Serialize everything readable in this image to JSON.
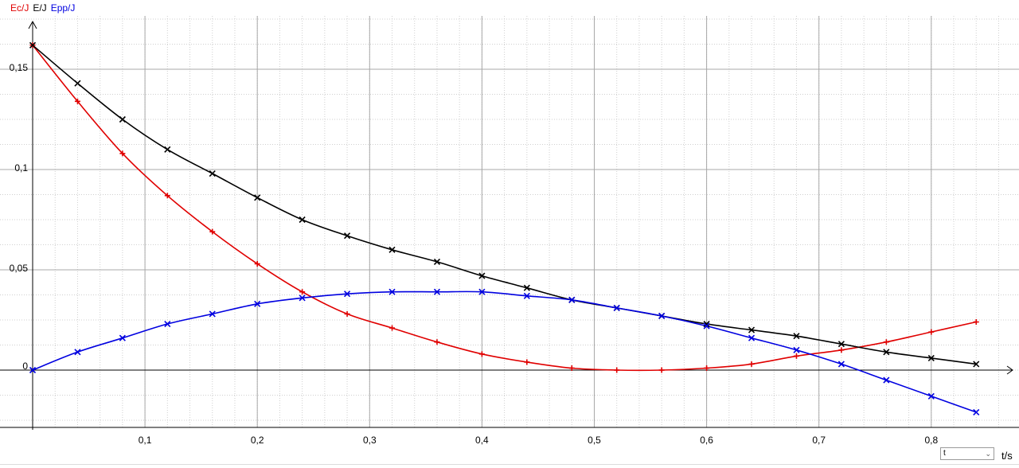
{
  "chart_data": {
    "type": "line",
    "legend": [
      "Ec/J",
      "E/J",
      "Epp/J"
    ],
    "xlabel": "t/s",
    "xlim": [
      0,
      0.87
    ],
    "ylim": [
      -0.028,
      0.173
    ],
    "x_ticks": [
      0.1,
      0.2,
      0.3,
      0.4,
      0.5,
      0.6,
      0.7,
      0.8
    ],
    "x_tick_labels": [
      "0,1",
      "0,2",
      "0,3",
      "0,4",
      "0,5",
      "0,6",
      "0,7",
      "0,8"
    ],
    "y_ticks": [
      0,
      0.05,
      0.1,
      0.15
    ],
    "y_tick_labels": [
      "0",
      "0,05",
      "0,1",
      "0,15"
    ],
    "grid": true,
    "x": [
      0,
      0.04,
      0.08,
      0.12,
      0.16,
      0.2,
      0.24,
      0.28,
      0.32,
      0.36,
      0.4,
      0.44,
      0.48,
      0.52,
      0.56,
      0.6,
      0.64,
      0.68,
      0.72,
      0.76,
      0.8,
      0.84
    ],
    "series": [
      {
        "name": "Ec/J",
        "color": "#e00000",
        "marker": "+",
        "values": [
          0.162,
          0.134,
          0.108,
          0.087,
          0.069,
          0.053,
          0.039,
          0.028,
          0.021,
          0.014,
          0.008,
          0.004,
          0.001,
          0.0,
          0.0,
          0.001,
          0.003,
          0.007,
          0.01,
          0.014,
          0.019,
          0.024
        ]
      },
      {
        "name": "E/J",
        "color": "#000000",
        "marker": "x",
        "values": [
          0.162,
          0.143,
          0.125,
          0.11,
          0.098,
          0.086,
          0.075,
          0.067,
          0.06,
          0.054,
          0.047,
          0.041,
          0.035,
          0.031,
          0.027,
          0.023,
          0.02,
          0.017,
          0.013,
          0.009,
          0.006,
          0.003
        ]
      },
      {
        "name": "Epp/J",
        "color": "#0000e0",
        "marker": "x",
        "values": [
          0.0,
          0.009,
          0.016,
          0.023,
          0.028,
          0.033,
          0.036,
          0.038,
          0.039,
          0.039,
          0.039,
          0.037,
          0.035,
          0.031,
          0.027,
          0.022,
          0.016,
          0.01,
          0.003,
          -0.005,
          -0.013,
          -0.021
        ]
      }
    ]
  },
  "controls": {
    "variable_select": "t"
  }
}
